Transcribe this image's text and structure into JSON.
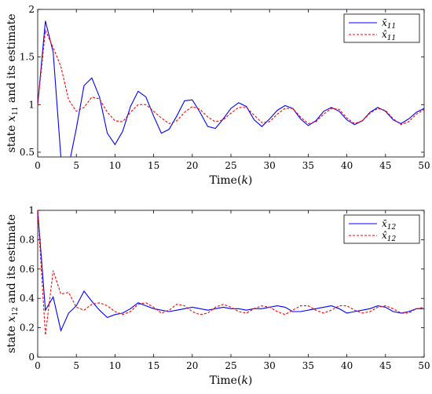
{
  "chart_data": [
    {
      "type": "line",
      "xlabel": "Time(k)",
      "ylabel": "state x11 and its estimate",
      "xlim": [
        0,
        50
      ],
      "ylim": [
        0.45,
        2
      ],
      "xticks": [
        "0",
        "5",
        "10",
        "15",
        "20",
        "25",
        "30",
        "35",
        "40",
        "45",
        "50"
      ],
      "yticks": [
        "0.5",
        "1",
        "1.5",
        "2"
      ],
      "legend_position": "top-right",
      "x": [
        0,
        1,
        2,
        3,
        4,
        5,
        6,
        7,
        8,
        9,
        10,
        11,
        12,
        13,
        14,
        15,
        16,
        17,
        18,
        19,
        20,
        21,
        22,
        23,
        24,
        25,
        26,
        27,
        28,
        29,
        30,
        31,
        32,
        33,
        34,
        35,
        36,
        37,
        38,
        39,
        40,
        41,
        42,
        43,
        44,
        45,
        46,
        47,
        48,
        49,
        50
      ],
      "series": [
        {
          "name": "x̄11",
          "style": "solid",
          "color": "#0000ff",
          "values": [
            1.0,
            1.88,
            1.55,
            0.45,
            0.35,
            0.75,
            1.2,
            1.28,
            1.08,
            0.7,
            0.58,
            0.72,
            0.98,
            1.14,
            1.08,
            0.88,
            0.7,
            0.74,
            0.88,
            1.04,
            1.05,
            0.92,
            0.77,
            0.75,
            0.85,
            0.96,
            1.02,
            0.98,
            0.84,
            0.77,
            0.85,
            0.94,
            0.99,
            0.96,
            0.85,
            0.78,
            0.83,
            0.93,
            0.97,
            0.93,
            0.84,
            0.79,
            0.83,
            0.92,
            0.97,
            0.93,
            0.84,
            0.8,
            0.85,
            0.92,
            0.96
          ]
        },
        {
          "name": "x̂11",
          "style": "dashed",
          "color": "#ff0000",
          "values": [
            1.0,
            1.78,
            1.6,
            1.4,
            1.05,
            0.93,
            0.97,
            1.08,
            1.06,
            0.92,
            0.83,
            0.82,
            0.92,
            1.0,
            1.0,
            0.93,
            0.86,
            0.8,
            0.83,
            0.92,
            0.98,
            0.95,
            0.87,
            0.82,
            0.84,
            0.91,
            0.97,
            0.97,
            0.89,
            0.81,
            0.82,
            0.9,
            0.96,
            0.96,
            0.87,
            0.8,
            0.82,
            0.9,
            0.96,
            0.95,
            0.86,
            0.8,
            0.83,
            0.91,
            0.96,
            0.94,
            0.85,
            0.79,
            0.82,
            0.9,
            0.95
          ]
        }
      ]
    },
    {
      "type": "line",
      "xlabel": "Time(k)",
      "ylabel": "state x12 and its estimate",
      "xlim": [
        0,
        50
      ],
      "ylim": [
        0,
        1
      ],
      "xticks": [
        "0",
        "5",
        "10",
        "15",
        "20",
        "25",
        "30",
        "35",
        "40",
        "45",
        "50"
      ],
      "yticks": [
        "0",
        "0.2",
        "0.4",
        "0.6",
        "0.8",
        "1"
      ],
      "legend_position": "top-right",
      "x": [
        0,
        1,
        2,
        3,
        4,
        5,
        6,
        7,
        8,
        9,
        10,
        11,
        12,
        13,
        14,
        15,
        16,
        17,
        18,
        19,
        20,
        21,
        22,
        23,
        24,
        25,
        26,
        27,
        28,
        29,
        30,
        31,
        32,
        33,
        34,
        35,
        36,
        37,
        38,
        39,
        40,
        41,
        42,
        43,
        44,
        45,
        46,
        47,
        48,
        49,
        50
      ],
      "series": [
        {
          "name": "x̄12",
          "style": "solid",
          "color": "#0000ff",
          "values": [
            1.0,
            0.32,
            0.41,
            0.18,
            0.3,
            0.35,
            0.45,
            0.38,
            0.32,
            0.27,
            0.29,
            0.3,
            0.33,
            0.37,
            0.35,
            0.33,
            0.32,
            0.31,
            0.32,
            0.33,
            0.34,
            0.33,
            0.32,
            0.33,
            0.34,
            0.33,
            0.33,
            0.32,
            0.33,
            0.33,
            0.34,
            0.35,
            0.34,
            0.31,
            0.31,
            0.32,
            0.33,
            0.34,
            0.35,
            0.33,
            0.3,
            0.31,
            0.32,
            0.33,
            0.35,
            0.34,
            0.31,
            0.3,
            0.31,
            0.33,
            0.33
          ]
        },
        {
          "name": "x̂12",
          "style": "dashed",
          "color": "#ff0000",
          "values": [
            1.0,
            0.15,
            0.59,
            0.43,
            0.44,
            0.34,
            0.32,
            0.36,
            0.37,
            0.35,
            0.31,
            0.29,
            0.31,
            0.36,
            0.37,
            0.34,
            0.3,
            0.32,
            0.36,
            0.35,
            0.31,
            0.29,
            0.3,
            0.34,
            0.36,
            0.34,
            0.31,
            0.3,
            0.33,
            0.35,
            0.34,
            0.31,
            0.29,
            0.32,
            0.35,
            0.35,
            0.32,
            0.3,
            0.32,
            0.35,
            0.35,
            0.32,
            0.3,
            0.31,
            0.34,
            0.35,
            0.33,
            0.3,
            0.3,
            0.33,
            0.34
          ]
        }
      ]
    }
  ]
}
